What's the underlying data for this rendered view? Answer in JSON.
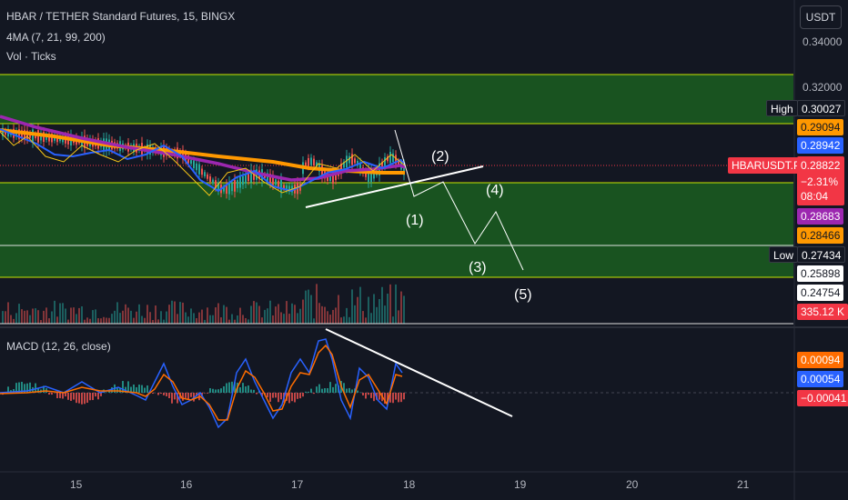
{
  "header": {
    "symbol_line": "HBAR / TETHER Standard Futures, 15, BINGX",
    "indicator_line": "4MA (7, 21, 99, 200)",
    "volume_line": "Vol · Ticks",
    "currency_button": "USDT"
  },
  "price_axis": {
    "ticks": [
      "0.34000",
      "0.32000"
    ],
    "labels": {
      "high_title": "High",
      "high_value": "0.30027",
      "ma200": "0.29094",
      "ma99": "0.28942",
      "symbol_tag": "HBARUSDT.PS",
      "last_price": "0.28822",
      "change": "−2.31%",
      "countdown": "08:04",
      "ma21": "0.28683",
      "ma7": "0.28466",
      "low_title": "Low",
      "low_value": "0.27434",
      "level1": "0.25898",
      "level2": "0.24754",
      "volume": "335.12 K"
    }
  },
  "macd": {
    "title": "MACD (12, 26, close)",
    "signal": "0.00094",
    "macd": "0.00054",
    "histogram": "−0.00041"
  },
  "time_axis": {
    "ticks": [
      "15",
      "16",
      "17",
      "18",
      "19",
      "20",
      "21"
    ]
  },
  "waves": [
    "(1)",
    "(2)",
    "(3)",
    "(4)",
    "(5)"
  ],
  "colors": {
    "background": "#131722",
    "zone_fill": "#1b5e20",
    "zone_line": "#c8e600",
    "ma_orange": "#ff9800",
    "ma_purple": "#9c27b0",
    "ma_blue": "#2962ff",
    "last_price": "#f23645",
    "macd_line": "#2962ff",
    "signal_line": "#ff6d00"
  }
}
